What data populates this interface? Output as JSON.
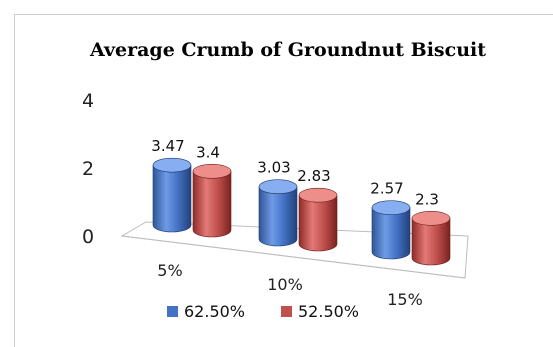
{
  "chart_data": {
    "type": "bar",
    "title": "Average Crumb of Groundnut Biscuit",
    "categories": [
      "5%",
      "10%",
      "15%"
    ],
    "series": [
      {
        "name": "62.50%",
        "values": [
          3.47,
          3.03,
          2.57
        ],
        "color": "#4472c4"
      },
      {
        "name": "52.50%",
        "values": [
          3.4,
          2.83,
          2.3
        ],
        "color": "#c0504d"
      }
    ],
    "value_labels": [
      [
        "3.47",
        "3.03",
        "2.57"
      ],
      [
        "3.4",
        "2.83",
        "2.3"
      ]
    ],
    "yticks": [
      "0",
      "2",
      "4"
    ],
    "ylim": [
      0,
      4
    ],
    "grid": false,
    "legend": "bottom",
    "style": "3d-cylinder"
  }
}
